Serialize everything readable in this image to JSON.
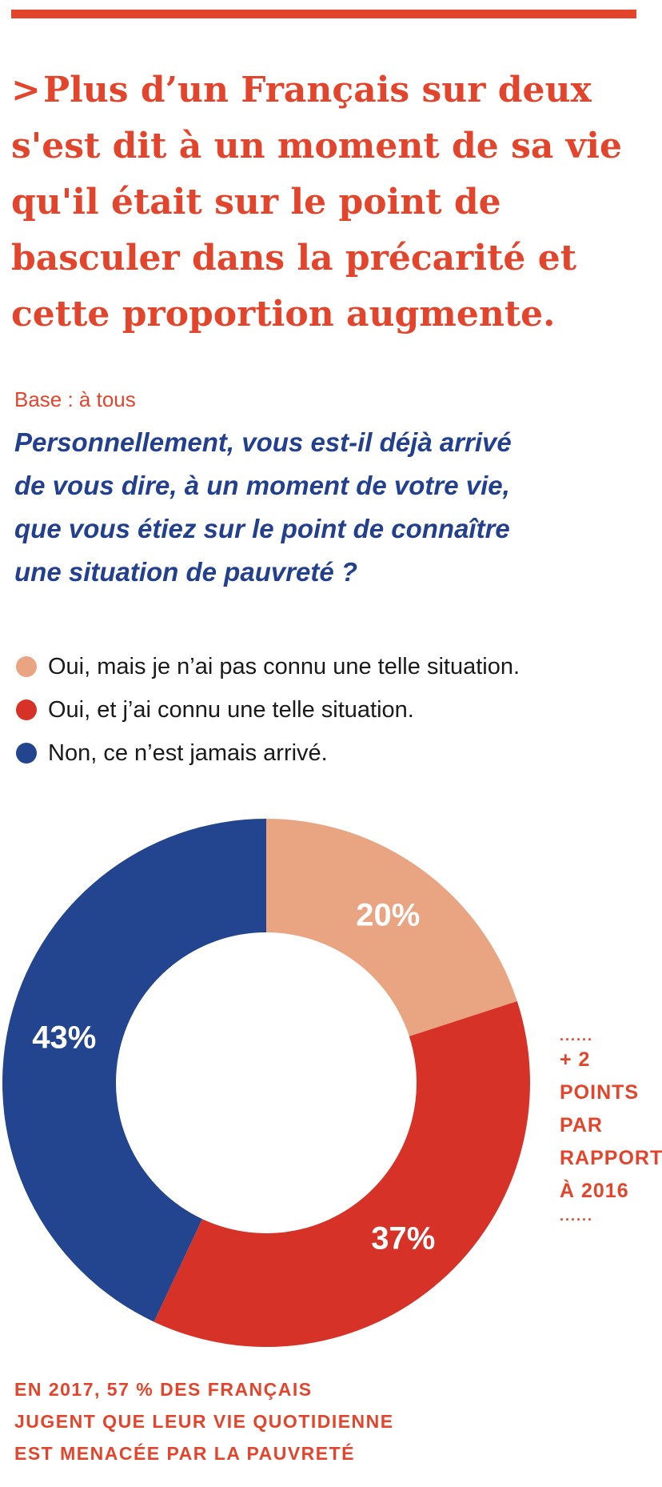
{
  "title": {
    "chevron": ">",
    "lines": [
      "Plus d’un Français sur deux",
      "s'est dit à un moment de sa vie",
      "qu'il était sur le point de",
      "basculer dans la précarité et",
      "cette proportion augmente."
    ]
  },
  "base": "Base : à tous",
  "question": {
    "lines": [
      "Personnellement, vous est-il déjà arrivé",
      "de vous dire, à un moment de votre vie,",
      "que vous étiez sur le point de connaître",
      "une situation de pauvreté ?"
    ]
  },
  "legend": [
    {
      "label": "Oui, mais je n’ai pas connu une telle situation.",
      "color": "#e9a482"
    },
    {
      "label": "Oui, et j’ai connu une telle situation.",
      "color": "#d63227"
    },
    {
      "label": "Non, ce n’est jamais arrivé.",
      "color": "#23448e"
    }
  ],
  "chart_data": {
    "type": "pie",
    "donut": true,
    "categories": [
      "Oui, mais je n’ai pas connu une telle situation.",
      "Oui, et j’ai connu une telle situation.",
      "Non, ce n’est jamais arrivé."
    ],
    "values": [
      20,
      37,
      43
    ],
    "labels": [
      "20%",
      "37%",
      "43%"
    ],
    "colors": [
      "#e9a482",
      "#d63227",
      "#23448e"
    ]
  },
  "side_note": {
    "dots": "......",
    "lines": [
      "+ 2",
      "POINTS",
      "PAR",
      "RAPPORT",
      "À 2016"
    ]
  },
  "footer": {
    "lines": [
      "EN 2017, 57 % DES FRANÇAIS",
      "JUGENT QUE LEUR VIE QUOTIDIENNE",
      "EST MENACÉE PAR LA PAUVRETÉ"
    ]
  }
}
